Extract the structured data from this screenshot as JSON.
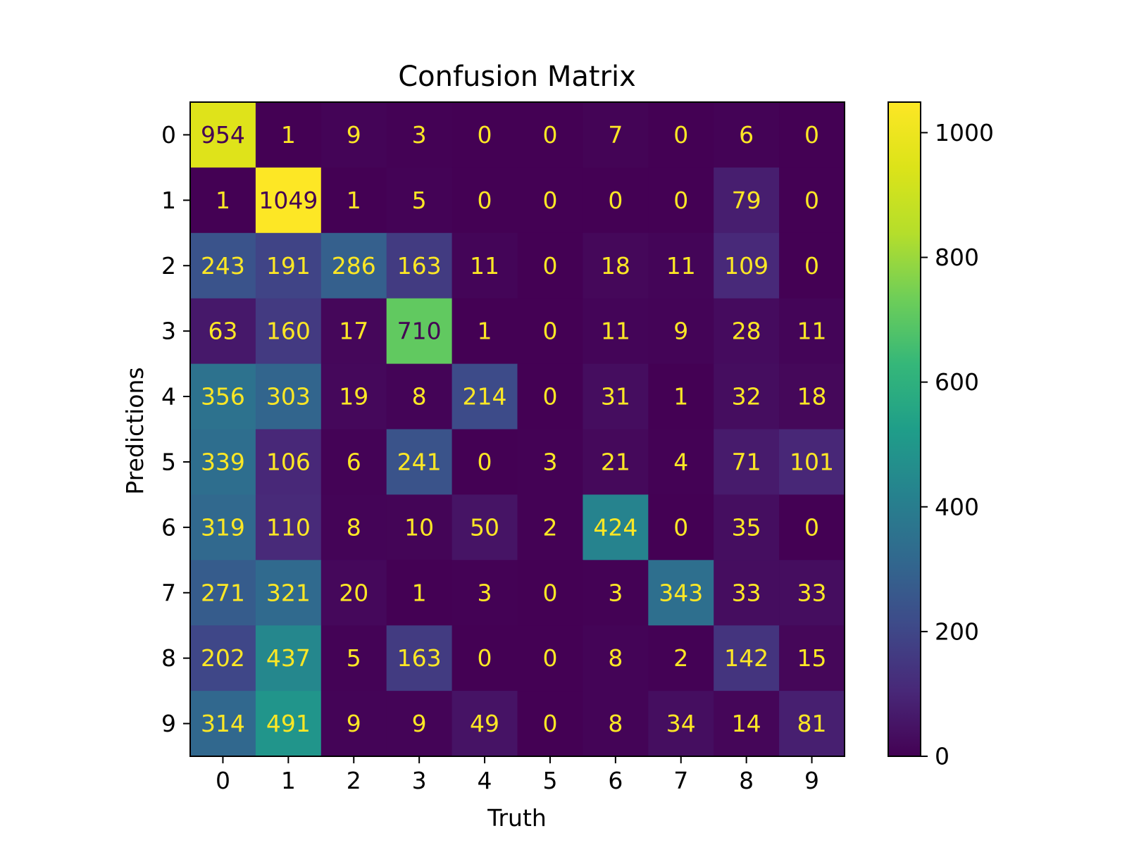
{
  "chart_data": {
    "type": "heatmap",
    "title": "Confusion Matrix",
    "xlabel": "Truth",
    "ylabel": "Predictions",
    "x_categories": [
      "0",
      "1",
      "2",
      "3",
      "4",
      "5",
      "6",
      "7",
      "8",
      "9"
    ],
    "y_categories": [
      "0",
      "1",
      "2",
      "3",
      "4",
      "5",
      "6",
      "7",
      "8",
      "9"
    ],
    "values": [
      [
        954,
        1,
        9,
        3,
        0,
        0,
        7,
        0,
        6,
        0
      ],
      [
        1,
        1049,
        1,
        5,
        0,
        0,
        0,
        0,
        79,
        0
      ],
      [
        243,
        191,
        286,
        163,
        11,
        0,
        18,
        11,
        109,
        0
      ],
      [
        63,
        160,
        17,
        710,
        1,
        0,
        11,
        9,
        28,
        11
      ],
      [
        356,
        303,
        19,
        8,
        214,
        0,
        31,
        1,
        32,
        18
      ],
      [
        339,
        106,
        6,
        241,
        0,
        3,
        21,
        4,
        71,
        101
      ],
      [
        319,
        110,
        8,
        10,
        50,
        2,
        424,
        0,
        35,
        0
      ],
      [
        271,
        321,
        20,
        1,
        3,
        0,
        3,
        343,
        33,
        33
      ],
      [
        202,
        437,
        5,
        163,
        0,
        0,
        8,
        2,
        142,
        15
      ],
      [
        314,
        491,
        9,
        9,
        49,
        0,
        8,
        34,
        14,
        81
      ]
    ],
    "colormap": "viridis",
    "vmin": 0,
    "vmax": 1049,
    "colorbar_ticks": [
      0,
      200,
      400,
      600,
      800,
      1000
    ],
    "text_color_dark": "#440154",
    "text_color_light": "#fde725",
    "grid": false
  }
}
